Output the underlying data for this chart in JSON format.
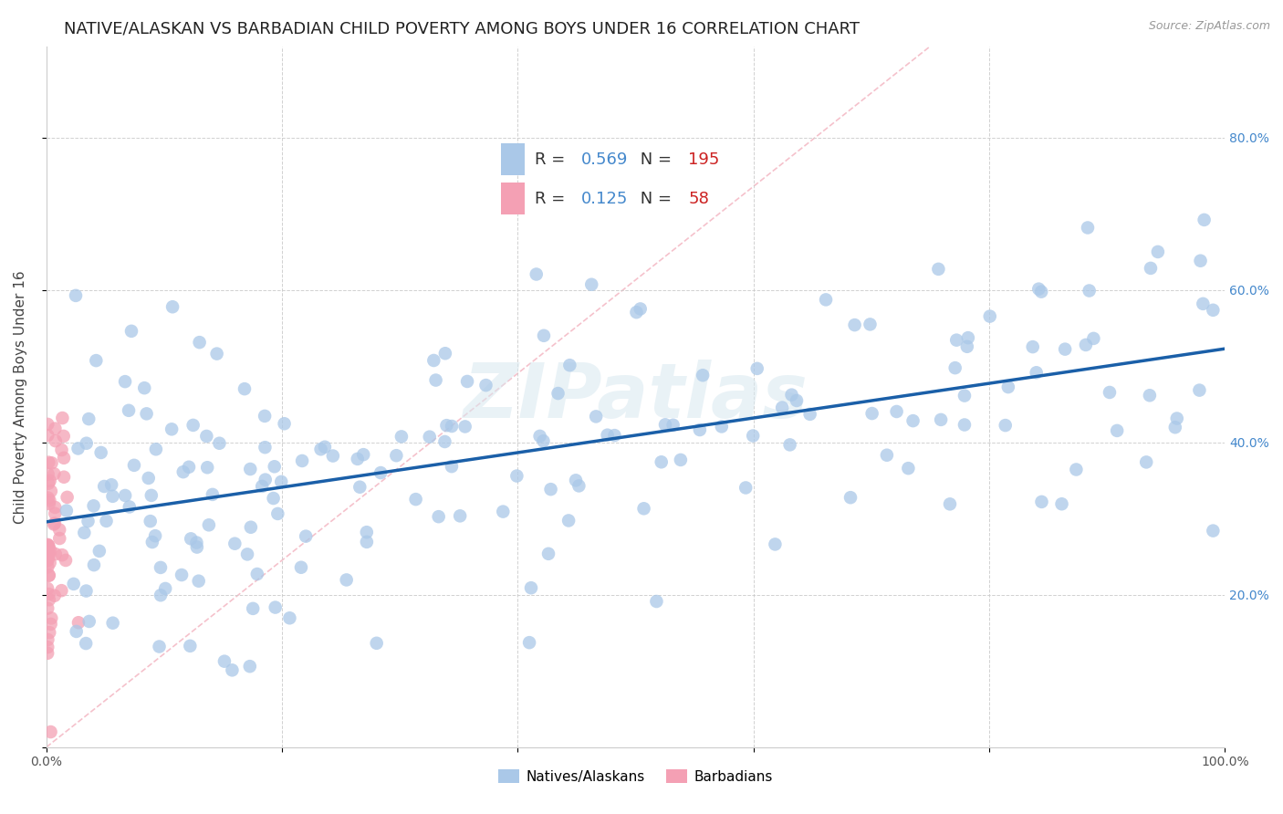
{
  "title": "NATIVE/ALASKAN VS BARBADIAN CHILD POVERTY AMONG BOYS UNDER 16 CORRELATION CHART",
  "source": "Source: ZipAtlas.com",
  "ylabel": "Child Poverty Among Boys Under 16",
  "xlim": [
    0,
    1.0
  ],
  "ylim": [
    0,
    0.92
  ],
  "xticks": [
    0.0,
    0.2,
    0.4,
    0.6,
    0.8,
    1.0
  ],
  "yticks": [
    0.0,
    0.2,
    0.4,
    0.6,
    0.8
  ],
  "xticklabels": [
    "0.0%",
    "",
    "",
    "",
    "",
    "100.0%"
  ],
  "right_yticks": [
    0.2,
    0.4,
    0.6,
    0.8
  ],
  "right_yticklabels": [
    "20.0%",
    "40.0%",
    "60.0%",
    "80.0%"
  ],
  "native_R": 0.569,
  "native_N": 195,
  "barbadian_R": 0.125,
  "barbadian_N": 58,
  "native_color": "#aac8e8",
  "barbadian_color": "#f4a0b4",
  "native_line_color": "#1a5fa8",
  "barbadian_dash_color": "#f0a0b0",
  "background_color": "#ffffff",
  "grid_color": "#cccccc",
  "watermark": "ZIPatlas",
  "title_fontsize": 13,
  "axis_label_fontsize": 11,
  "tick_fontsize": 10,
  "right_tick_color": "#4488cc",
  "legend_R_color": "#4488cc",
  "legend_N_color": "#cc2222"
}
